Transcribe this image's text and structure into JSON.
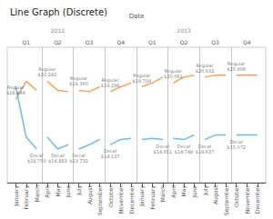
{
  "chart_data": {
    "type": "line",
    "title": "Line Graph (Discrete)",
    "x2label": "Date",
    "xlim": [
      0.2,
      24.8
    ],
    "xticks": [
      {
        "value": 1,
        "label": "January"
      },
      {
        "value": 2,
        "label": "February"
      },
      {
        "value": 3,
        "label": "March"
      },
      {
        "value": 4,
        "label": "April"
      },
      {
        "value": 5,
        "label": "May"
      },
      {
        "value": 6,
        "label": "June"
      },
      {
        "value": 7,
        "label": "July"
      },
      {
        "value": 8,
        "label": "August"
      },
      {
        "value": 9,
        "label": "September"
      },
      {
        "value": 10,
        "label": "October"
      },
      {
        "value": 11,
        "label": "November"
      },
      {
        "value": 12,
        "label": "December"
      },
      {
        "value": 13,
        "label": "January"
      },
      {
        "value": 14,
        "label": "February"
      },
      {
        "value": 15,
        "label": "March"
      },
      {
        "value": 16,
        "label": "April"
      },
      {
        "value": 17,
        "label": "May"
      },
      {
        "value": 18,
        "label": "June"
      },
      {
        "value": 19,
        "label": "July"
      },
      {
        "value": 20,
        "label": "August"
      },
      {
        "value": 21,
        "label": "September"
      },
      {
        "value": 22,
        "label": "October"
      },
      {
        "value": 23,
        "label": "November"
      },
      {
        "value": 24,
        "label": "December"
      }
    ],
    "x2ticks": [
      {
        "value": 2,
        "label": "Q1"
      },
      {
        "value": 5,
        "label": "Q2"
      },
      {
        "value": 8,
        "label": "Q3"
      },
      {
        "value": 11,
        "label": "Q4"
      },
      {
        "value": 14,
        "label": "Q1"
      },
      {
        "value": 17,
        "label": "Q2"
      },
      {
        "value": 20,
        "label": "Q3"
      },
      {
        "value": 23,
        "label": "Q4"
      }
    ],
    "x3ticks": [
      {
        "value": 5,
        "label": "2012"
      },
      {
        "value": 17,
        "label": "2013"
      }
    ],
    "ylim": [
      10500,
      23500
    ],
    "tick_labels": "x",
    "grid": false,
    "vlines": [
      3.5,
      6.5,
      9.5,
      12.5,
      15.5,
      18.5,
      21.5
    ],
    "series": [
      {
        "color": "#f4a460",
        "x": [
          1,
          2,
          3
        ],
        "values": [
          18494,
          20242,
          19360
        ]
      },
      {
        "color": "#f4a460",
        "x": [
          4,
          5,
          6
        ],
        "values": [
          20242,
          19360,
          19236
        ]
      },
      {
        "color": "#f4a460",
        "x": [
          7,
          8,
          9
        ],
        "values": [
          19360,
          19236,
          19704
        ]
      },
      {
        "color": "#f4a460",
        "x": [
          10,
          11,
          12
        ],
        "values": [
          19236,
          19704,
          20061
        ]
      },
      {
        "color": "#f4a460",
        "x": [
          13,
          14,
          15
        ],
        "values": [
          19704,
          20061,
          20632
        ]
      },
      {
        "color": "#f4a460",
        "x": [
          16,
          17,
          18
        ],
        "values": [
          20061,
          20632,
          20808
        ]
      },
      {
        "color": "#f4a460",
        "x": [
          19,
          20,
          21
        ],
        "values": [
          20632,
          20808,
          20808
        ]
      },
      {
        "color": "#f4a460",
        "x": [
          22,
          23,
          24
        ],
        "values": [
          20808,
          20808,
          20808
        ]
      },
      {
        "color": "#74b9e7",
        "x": [
          1,
          2,
          3
        ],
        "values": [
          19750,
          14883,
          13732
        ]
      },
      {
        "color": "#74b9e7",
        "x": [
          4,
          5,
          6
        ],
        "values": [
          14883,
          13732,
          14137
        ]
      },
      {
        "color": "#74b9e7",
        "x": [
          7,
          8,
          9
        ],
        "values": [
          13732,
          14137,
          14651
        ]
      },
      {
        "color": "#74b9e7",
        "x": [
          10,
          11,
          12
        ],
        "values": [
          14137,
          14651,
          14748
        ]
      },
      {
        "color": "#74b9e7",
        "x": [
          13,
          14,
          15
        ],
        "values": [
          14651,
          14748,
          14637
        ]
      },
      {
        "color": "#74b9e7",
        "x": [
          16,
          17,
          18
        ],
        "values": [
          14748,
          14637,
          15072
        ]
      },
      {
        "color": "#74b9e7",
        "x": [
          19,
          20,
          21
        ],
        "values": [
          14637,
          15072,
          15072
        ]
      },
      {
        "color": "#74b9e7",
        "x": [
          22,
          23,
          24
        ],
        "values": [
          15072,
          15072,
          15072
        ]
      }
    ],
    "annotations": [
      {
        "text": "Regular\n$18,494",
        "x": 1,
        "y": 18494,
        "position": "above"
      },
      {
        "text": "Regular\n$20,242",
        "x": 4,
        "y": 20242,
        "position": "above"
      },
      {
        "text": "Regular\n$19,360",
        "x": 7,
        "y": 19360,
        "position": "above"
      },
      {
        "text": "Regular\n$19,236",
        "x": 10,
        "y": 19236,
        "position": "above"
      },
      {
        "text": "Regular\n$19,704",
        "x": 13,
        "y": 19704,
        "position": "above"
      },
      {
        "text": "Regular\n$20,061",
        "x": 16,
        "y": 20061,
        "position": "above"
      },
      {
        "text": "Regular\n$20,632",
        "x": 19,
        "y": 20632,
        "position": "above"
      },
      {
        "text": "Regular\n$20,808",
        "x": 22,
        "y": 20808,
        "position": "above"
      },
      {
        "text": "Decaf\n$19,750",
        "x": 3,
        "y": 13732,
        "position": "below"
      },
      {
        "text": "Decaf\n$14,883",
        "x": 5,
        "y": 13732,
        "position": "below"
      },
      {
        "text": "Decaf\n$13,732",
        "x": 7,
        "y": 13732,
        "position": "below"
      },
      {
        "text": "Decaf\n$14,137",
        "x": 10,
        "y": 14137,
        "position": "below"
      },
      {
        "text": "Decaf\n$14,651",
        "x": 15,
        "y": 14637,
        "position": "below"
      },
      {
        "text": "Decaf\n$14,748",
        "x": 17,
        "y": 14637,
        "position": "below"
      },
      {
        "text": "Decaf\n$14,637",
        "x": 19,
        "y": 14637,
        "position": "below"
      },
      {
        "text": "Decaf\n$15,072",
        "x": 22,
        "y": 15072,
        "position": "below"
      }
    ]
  }
}
